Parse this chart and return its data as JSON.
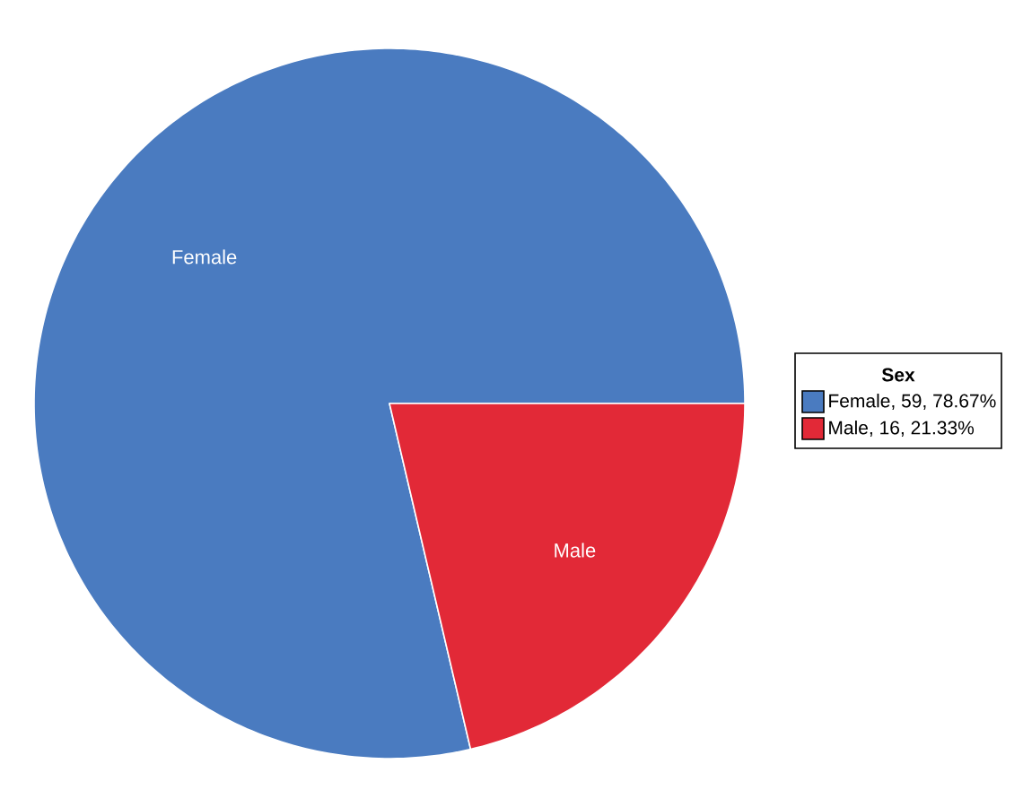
{
  "chart_data": {
    "type": "pie",
    "categories": [
      "Female",
      "Male"
    ],
    "values": [
      59,
      16
    ],
    "colors": [
      "#4a7bc0",
      "#e22937"
    ],
    "legend": "right",
    "legend_title": "Sex",
    "value_labels": [
      ", 59, 78.67%",
      ", 16, 21.33%"
    ]
  }
}
